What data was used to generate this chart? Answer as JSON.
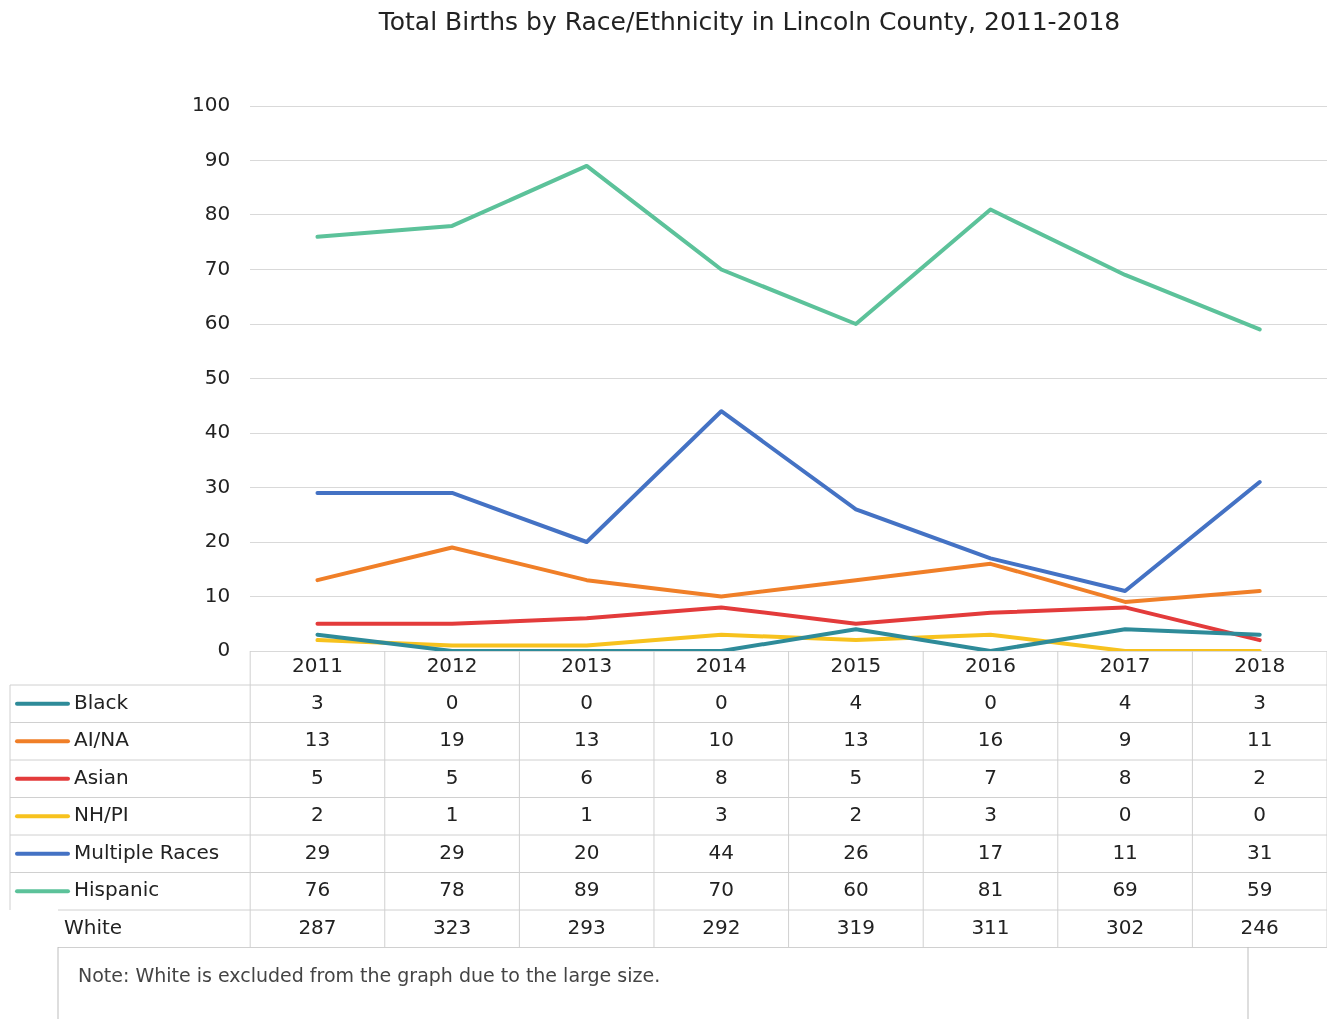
{
  "chart_data": {
    "type": "line",
    "title": "Total Births by Race/Ethnicity in Lincoln County, 2011-2018",
    "categories": [
      "2011",
      "2012",
      "2013",
      "2014",
      "2015",
      "2016",
      "2017",
      "2018"
    ],
    "series": [
      {
        "name": "Black",
        "color": "#2e8b99",
        "values": [
          3,
          0,
          0,
          0,
          4,
          0,
          4,
          3
        ]
      },
      {
        "name": "AI/NA",
        "color": "#f07f28",
        "values": [
          13,
          19,
          13,
          10,
          13,
          16,
          9,
          11
        ]
      },
      {
        "name": "Asian",
        "color": "#e33b3b",
        "values": [
          5,
          5,
          6,
          8,
          5,
          7,
          8,
          2
        ]
      },
      {
        "name": "NH/PI",
        "color": "#f7c21e",
        "values": [
          2,
          1,
          1,
          3,
          2,
          3,
          0,
          0
        ]
      },
      {
        "name": "Multiple Races",
        "color": "#4472c4",
        "values": [
          29,
          29,
          20,
          44,
          26,
          17,
          11,
          31
        ]
      },
      {
        "name": "Hispanic",
        "color": "#5cc29a",
        "values": [
          76,
          78,
          89,
          70,
          60,
          81,
          69,
          59
        ]
      }
    ],
    "ylim": [
      0,
      100
    ],
    "yticks": [
      0,
      10,
      20,
      30,
      40,
      50,
      60,
      70,
      80,
      90,
      100
    ],
    "grid": "y",
    "legend": "bottom",
    "data_labels": true,
    "marker": "none",
    "line_style": "solid",
    "annotations": [
      "White",
      "287",
      "323",
      "293",
      "292",
      "319",
      "311",
      "302",
      "246",
      "Note: White is excluded from the graph due to the large size."
    ]
  }
}
